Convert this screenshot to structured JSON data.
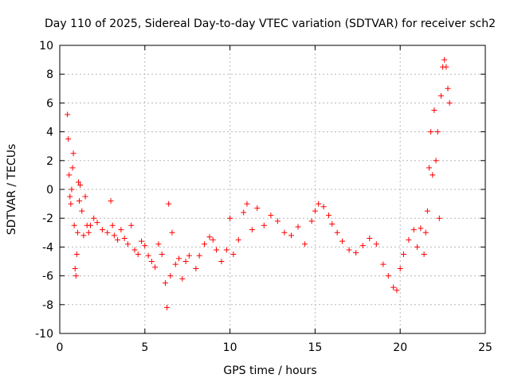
{
  "chart_data": {
    "type": "scatter",
    "title": "Day 110 of 2025, Sidereal Day-to-day VTEC variation (SDTVAR) for receiver sch2",
    "xlabel": "GPS time / hours",
    "ylabel": "SDTVAR / TECUs",
    "xlim": [
      0,
      25
    ],
    "ylim": [
      -10,
      10
    ],
    "xticks": [
      0,
      5,
      10,
      15,
      20,
      25
    ],
    "yticks": [
      -10,
      -8,
      -6,
      -4,
      -2,
      0,
      2,
      4,
      6,
      8,
      10
    ],
    "grid": true,
    "marker": "+",
    "color": "#ff0000",
    "series": [
      {
        "name": "SDTVAR",
        "x": [
          0.45,
          0.5,
          0.55,
          0.6,
          0.65,
          0.7,
          0.75,
          0.8,
          0.85,
          0.9,
          0.95,
          1.0,
          1.05,
          1.1,
          1.15,
          1.2,
          1.3,
          1.4,
          1.5,
          1.6,
          1.7,
          1.8,
          2.0,
          2.2,
          2.5,
          2.8,
          3.0,
          3.1,
          3.2,
          3.4,
          3.6,
          3.8,
          4.0,
          4.2,
          4.4,
          4.6,
          4.8,
          5.0,
          5.2,
          5.4,
          5.6,
          5.8,
          6.0,
          6.2,
          6.3,
          6.4,
          6.5,
          6.6,
          6.8,
          7.0,
          7.2,
          7.4,
          7.6,
          8.0,
          8.2,
          8.5,
          8.8,
          9.0,
          9.2,
          9.5,
          9.8,
          10.0,
          10.2,
          10.5,
          10.8,
          11.0,
          11.3,
          11.6,
          12.0,
          12.4,
          12.8,
          13.2,
          13.6,
          14.0,
          14.4,
          14.8,
          15.0,
          15.2,
          15.5,
          15.8,
          16.0,
          16.3,
          16.6,
          17.0,
          17.4,
          17.8,
          18.2,
          18.6,
          19.0,
          19.3,
          19.6,
          19.8,
          20.0,
          20.2,
          20.5,
          20.8,
          21.0,
          21.2,
          21.4,
          21.5,
          21.6,
          21.7,
          21.8,
          21.9,
          22.0,
          22.1,
          22.2,
          22.3,
          22.4,
          22.5,
          22.6,
          22.7,
          22.8,
          22.9
        ],
        "y": [
          5.2,
          3.5,
          1.0,
          -0.5,
          -1.0,
          0.0,
          1.5,
          2.5,
          -2.5,
          -5.5,
          -6.0,
          -4.5,
          -3.0,
          0.5,
          -0.8,
          0.3,
          -1.5,
          -3.2,
          -0.5,
          -2.5,
          -3.0,
          -2.5,
          -2.0,
          -2.3,
          -2.8,
          -3.0,
          -0.8,
          -2.5,
          -3.2,
          -3.5,
          -2.8,
          -3.4,
          -3.8,
          -2.5,
          -4.2,
          -4.5,
          -3.6,
          -3.9,
          -4.6,
          -5.0,
          -5.4,
          -3.8,
          -4.5,
          -6.5,
          -8.2,
          -1.0,
          -6.0,
          -3.0,
          -5.2,
          -4.8,
          -6.2,
          -5.0,
          -4.6,
          -5.5,
          -4.6,
          -3.8,
          -3.3,
          -3.5,
          -4.2,
          -5.0,
          -4.2,
          -2.0,
          -4.5,
          -3.5,
          -1.6,
          -1.0,
          -2.8,
          -1.3,
          -2.5,
          -1.8,
          -2.2,
          -3.0,
          -3.2,
          -2.6,
          -3.8,
          -2.2,
          -1.5,
          -1.0,
          -1.2,
          -1.8,
          -2.4,
          -3.0,
          -3.6,
          -4.2,
          -4.4,
          -3.9,
          -3.4,
          -3.8,
          -5.2,
          -6.0,
          -6.8,
          -7.0,
          -5.5,
          -4.5,
          -3.5,
          -2.8,
          -4.0,
          -2.7,
          -4.5,
          -3.0,
          -1.5,
          1.5,
          4.0,
          1.0,
          5.5,
          2.0,
          4.0,
          -2.0,
          6.5,
          8.5,
          9.0,
          8.5,
          7.0,
          6.0
        ]
      }
    ]
  }
}
